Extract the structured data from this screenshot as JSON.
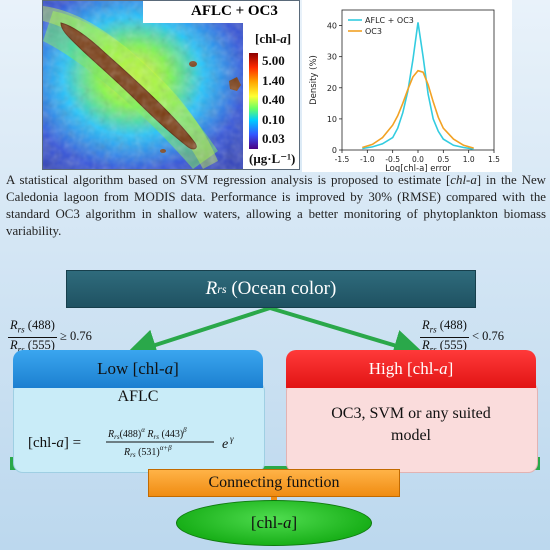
{
  "map": {
    "title": "AFLC + OC3",
    "units_label": "[chl-a]",
    "units_bottom": "(μg·L⁻¹)",
    "colorbar": {
      "ticks": [
        "5.00",
        "1.40",
        "0.40",
        "0.10",
        "0.03"
      ],
      "colors": [
        "#8b0000",
        "#ff2a00",
        "#ffa500",
        "#ffff33",
        "#66ff66",
        "#00ccff",
        "#3355ff",
        "#4b0082"
      ]
    }
  },
  "chart_data": {
    "type": "line",
    "title": "",
    "xlabel": "Log[chl-a] error",
    "ylabel": "Density (%)",
    "xlim": [
      -1.5,
      1.5
    ],
    "ylim": [
      0,
      45
    ],
    "xticks": [
      "-1.5",
      "-1.0",
      "-0.5",
      "0.0",
      "0.5",
      "1.0",
      "1.5"
    ],
    "yticks": [
      "0",
      "10",
      "20",
      "30",
      "40"
    ],
    "legend": "top-left",
    "series": [
      {
        "name": "AFLC + OC3",
        "color": "#33cce0",
        "x": [
          -1.1,
          -0.9,
          -0.7,
          -0.5,
          -0.4,
          -0.3,
          -0.2,
          -0.1,
          0.0,
          0.1,
          0.2,
          0.3,
          0.4,
          0.5,
          0.7,
          0.9,
          1.1
        ],
        "y": [
          0.5,
          1.0,
          2.0,
          4.0,
          7.0,
          12.0,
          19.0,
          29.0,
          41.0,
          30.0,
          18.0,
          10.0,
          6.0,
          3.5,
          1.5,
          0.8,
          0.3
        ]
      },
      {
        "name": "OC3",
        "color": "#f2a224",
        "x": [
          -1.1,
          -0.9,
          -0.7,
          -0.5,
          -0.4,
          -0.3,
          -0.2,
          -0.1,
          0.0,
          0.1,
          0.2,
          0.3,
          0.4,
          0.5,
          0.7,
          0.9,
          1.1
        ],
        "y": [
          0.8,
          1.8,
          4.0,
          8.0,
          11.0,
          15.0,
          19.5,
          23.5,
          25.5,
          25.0,
          21.0,
          15.5,
          10.5,
          7.0,
          3.5,
          1.5,
          0.6
        ]
      }
    ]
  },
  "description": {
    "p1": "A statistical algorithm based on SVM regression analysis is proposed to estimate ",
    "p2": "chl-a",
    "p3": " in the New Caledonia lagoon from MODIS data. Performance is improved by 30% (RMSE) compared with the standard OC3 algorithm in shallow waters, allowing a better monitoring of phytoplankton biomass variability."
  },
  "diagram": {
    "rrs_symbol": "R",
    "rrs_sub": "rs",
    "rrs_label": "(Ocean color)",
    "cond_low": {
      "num": "(488)",
      "den": "(555)",
      "op": "≥ 0.76"
    },
    "cond_high": {
      "num": "(488)",
      "den": "(555)",
      "op": "< 0.76"
    },
    "low_header": "Low [chl-a]",
    "high_header": "High [chl-a]",
    "low_model": "AFLC",
    "high_model_line1": "OC3, SVM or any suited",
    "high_model_line2": "model",
    "formula_lhs": "[chl-a] =",
    "connect": "Connecting function",
    "output": "[chl-a]"
  }
}
